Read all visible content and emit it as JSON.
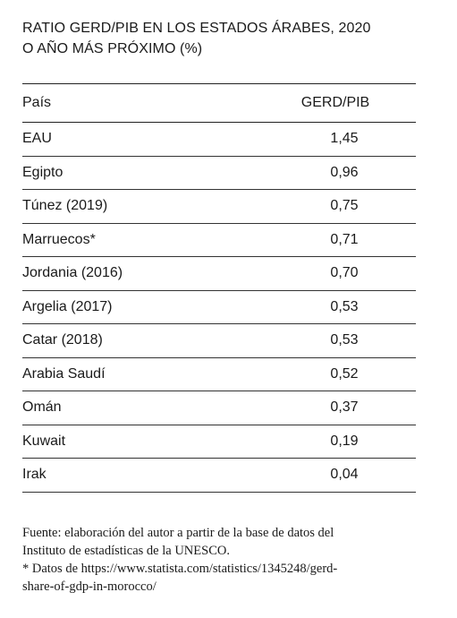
{
  "title": {
    "line1": "RATIO GERD/PIB EN LOS ESTADOS ÁRABES, 2020",
    "line2": "O AÑO MÁS PRÓXIMO (%)"
  },
  "table": {
    "headers": {
      "country": "País",
      "value": "GERD/PIB"
    },
    "rows": [
      {
        "country": "EAU",
        "value": "1,45"
      },
      {
        "country": "Egipto",
        "value": "0,96"
      },
      {
        "country": "Túnez (2019)",
        "value": "0,75"
      },
      {
        "country": "Marruecos*",
        "value": "0,71"
      },
      {
        "country": "Jordania (2016)",
        "value": "0,70"
      },
      {
        "country": "Argelia (2017)",
        "value": "0,53"
      },
      {
        "country": "Catar (2018)",
        "value": "0,53"
      },
      {
        "country": "Arabia Saudí",
        "value": "0,52"
      },
      {
        "country": "Omán",
        "value": "0,37"
      },
      {
        "country": "Kuwait",
        "value": "0,19"
      },
      {
        "country": "Irak",
        "value": "0,04"
      }
    ]
  },
  "footer": {
    "source_line1": "Fuente: elaboración del autor a partir de la base de datos del",
    "source_line2": "Instituto de estadísticas de la UNESCO.",
    "note_line1": "* Datos de https://www.statista.com/statistics/1345248/gerd-",
    "note_line2": "share-of-gdp-in-morocco/"
  }
}
